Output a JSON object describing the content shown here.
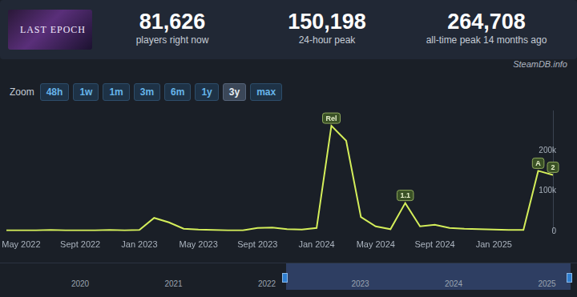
{
  "header": {
    "game": "LAST EPOCH",
    "stats": [
      {
        "value": "81,626",
        "label": "players right now"
      },
      {
        "value": "150,198",
        "label": "24-hour peak"
      },
      {
        "value": "264,708",
        "label": "all-time peak 14 months ago"
      }
    ]
  },
  "source": "SteamDB.info",
  "zoom": {
    "label": "Zoom",
    "options": [
      "48h",
      "1w",
      "1m",
      "3m",
      "6m",
      "1y",
      "3y",
      "max"
    ],
    "selected": "3y"
  },
  "navigator": {
    "years": [
      "2020",
      "2021",
      "2022",
      "2023",
      "2024",
      "2025"
    ]
  },
  "chart_data": {
    "type": "line",
    "categories": [
      null,
      "May 2022",
      null,
      null,
      null,
      "Sept 2022",
      null,
      null,
      null,
      "Jan 2023",
      null,
      null,
      null,
      "May 2023",
      null,
      null,
      null,
      "Sept 2023",
      null,
      null,
      null,
      "Jan 2024",
      null,
      null,
      null,
      "May 2024",
      null,
      null,
      null,
      "Sept 2024",
      null,
      null,
      null,
      "Jan 2025",
      null,
      null,
      null,
      null
    ],
    "values": [
      2000,
      2000,
      2000,
      3000,
      2000,
      2000,
      2000,
      3000,
      2000,
      3000,
      33000,
      22000,
      6000,
      4000,
      3000,
      2000,
      2000,
      8000,
      9000,
      5000,
      4000,
      8000,
      262000,
      225000,
      35000,
      12000,
      5000,
      70000,
      12000,
      16000,
      8000,
      6000,
      5000,
      4000,
      3000,
      3000,
      150000,
      140000
    ],
    "color": "#d4ee5a",
    "ylim": [
      0,
      300000
    ],
    "yticks": [
      0,
      {
        "value": 100000,
        "label": "100k"
      },
      {
        "value": 200000,
        "label": "200k"
      }
    ],
    "grid": false,
    "annotations": [
      {
        "index": 22,
        "label": "Rel"
      },
      {
        "index": 27,
        "label": "1.1"
      },
      {
        "index": 36,
        "label": "A"
      },
      {
        "index": 37,
        "label": "2"
      }
    ]
  }
}
